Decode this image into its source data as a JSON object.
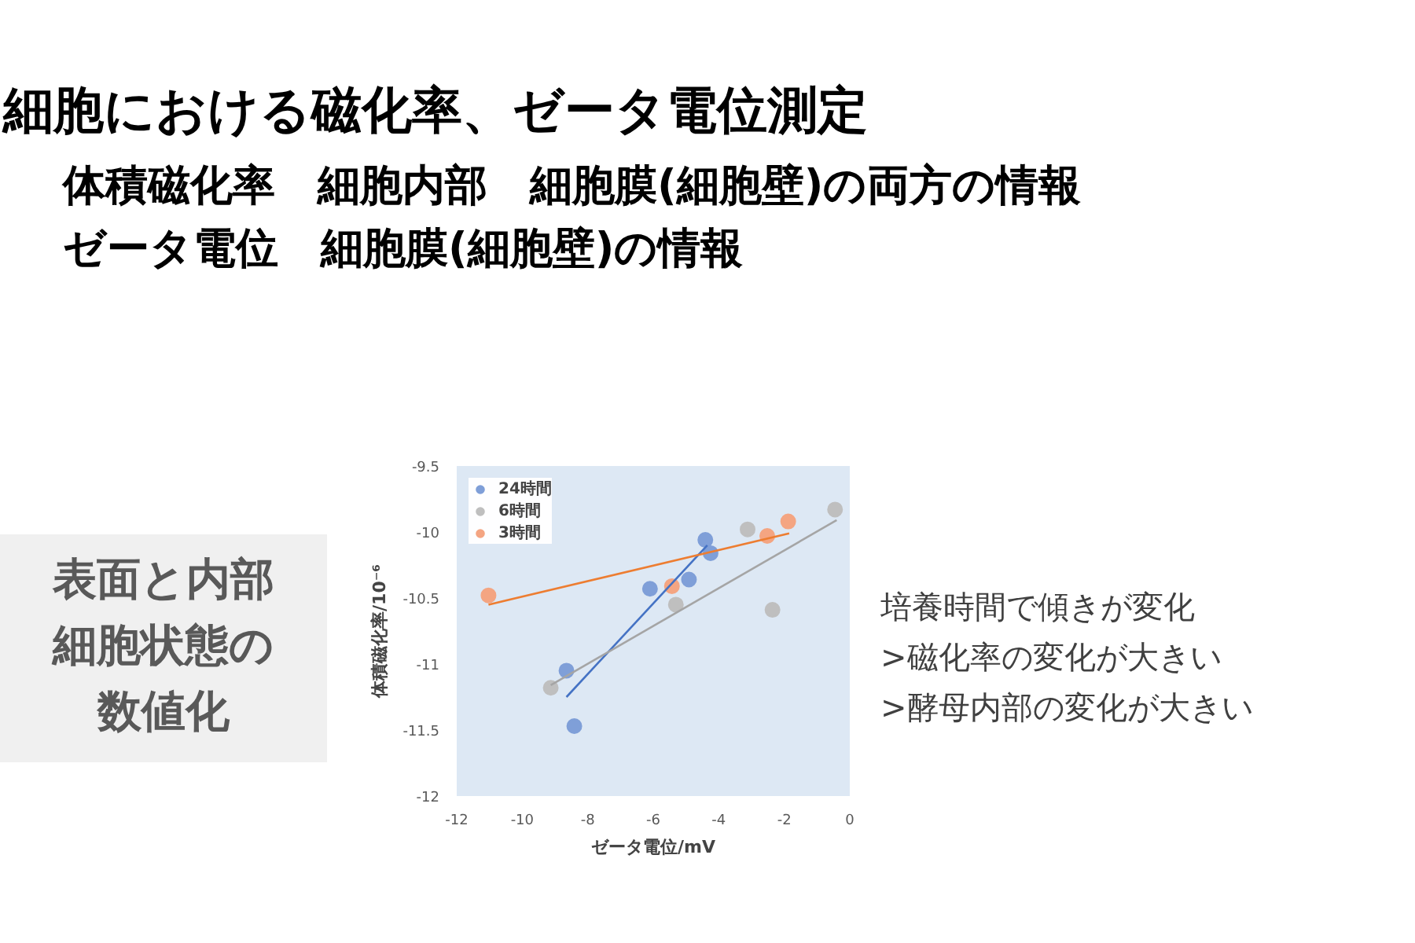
{
  "chart_data": {
    "type": "scatter",
    "title": "細胞における磁化率、ゼータ電位測定",
    "subtitle": "体積磁化率　細胞内部　細胞膜(細胞壁)の両方の情報",
    "annotations": [
      "ゼータ電位　細胞膜(細胞壁)の情報",
      "表面と内部細胞状態の数値化",
      "培養時間で傾きが変化",
      ">磁化率の変化が大きい",
      ">酵母内部の変化が大きい"
    ],
    "xlabel": "ゼータ電位/mV",
    "ylabel": "体積磁化率/10⁻⁶",
    "xlim": [
      -12,
      0
    ],
    "xticks": [
      -12,
      -10,
      -8,
      -6,
      -4,
      -2,
      0
    ],
    "ylim": [
      -12,
      -9.5
    ],
    "yticks": [
      -12,
      -11.5,
      -11,
      -10.5,
      -10,
      -9.5
    ],
    "grid": false,
    "legend": "top left",
    "marker": "circle",
    "series": [
      {
        "name": "24時間",
        "color": "#7f9fd8",
        "x": [
          -4.41,
          -4.25,
          -6.1,
          -4.91,
          -8.65,
          -8.41
        ],
        "values": [
          -10.06,
          -10.16,
          -10.43,
          -10.36,
          -11.05,
          -11.47
        ]
      },
      {
        "name": "6時間",
        "color": "#bfbfbf",
        "x": [
          -9.13,
          -5.31,
          -3.12,
          -2.36,
          -0.45
        ],
        "values": [
          -11.18,
          -10.55,
          -9.98,
          -10.59,
          -9.83
        ]
      },
      {
        "name": "3時間",
        "color": "#f4a582",
        "x": [
          -11.03,
          -5.43,
          -2.52,
          -1.88
        ],
        "values": [
          -10.48,
          -10.41,
          -10.03,
          -9.92
        ]
      },
      {
        "type": "line",
        "marker": "none",
        "color": "#4472c4",
        "x": [
          -8.65,
          -4.35
        ],
        "values": [
          -11.25,
          -10.1
        ]
      },
      {
        "type": "line",
        "marker": "none",
        "color": "#a5a5a5",
        "x": [
          -9.13,
          -0.4
        ],
        "values": [
          -11.16,
          -9.91
        ]
      },
      {
        "type": "line",
        "marker": "none",
        "color": "#ed7d31",
        "x": [
          -11.03,
          -1.85
        ],
        "values": [
          -10.55,
          -10.01
        ]
      }
    ]
  }
}
